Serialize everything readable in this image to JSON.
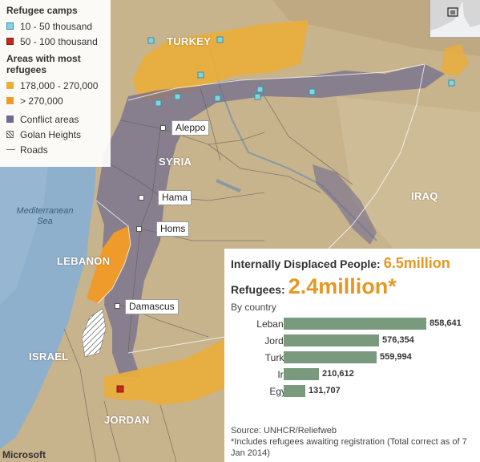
{
  "legend": {
    "camps_heading": "Refugee camps",
    "camps": [
      {
        "label": "10 - 50 thousand",
        "color": "#7fd6e3"
      },
      {
        "label": "50 - 100 thousand",
        "color": "#c22a1e"
      }
    ],
    "areas_heading": "Areas with most refugees",
    "areas": [
      {
        "label": "178,000 - 270,000",
        "color": "#e9ae3c"
      },
      {
        "label": "> 270,000",
        "color": "#ef9b2c"
      }
    ],
    "other": [
      {
        "label": "Conflict areas",
        "color": "#6f6b8e"
      },
      {
        "label": "Golan Heights"
      },
      {
        "label": "Roads"
      }
    ]
  },
  "map": {
    "countries": {
      "turkey": "TURKEY",
      "syria": "SYRIA",
      "iraq": "IRAQ",
      "lebanon": "LEBANON",
      "israel": "ISRAEL",
      "jordan": "JORDAN"
    },
    "sea": "Mediterranean Sea",
    "cities": {
      "aleppo": "Aleppo",
      "hama": "Hama",
      "homs": "Homs",
      "damascus": "Damascus"
    },
    "attribution": "Microsoft"
  },
  "stats": {
    "idp_label": "Internally Displaced People:",
    "idp_value": "6.5million",
    "refugees_label": "Refugees:",
    "refugees_value": "2.4million*",
    "by_country": "By country",
    "source": "Source: UNHCR/Reliefweb",
    "note": "*Includes refugees awaiting registration  (Total correct as of 7 Jan 2014)"
  },
  "chart_data": {
    "type": "bar",
    "orientation": "horizontal",
    "categories": [
      "Lebanon",
      "Jordan",
      "Turkey",
      "Iraq",
      "Egypt"
    ],
    "values": [
      858641,
      576354,
      559994,
      210612,
      131707
    ],
    "value_labels": [
      "858,641",
      "576,354",
      "559,994",
      "210,612",
      "131,707"
    ],
    "bar_color": "#7a9a7d"
  }
}
